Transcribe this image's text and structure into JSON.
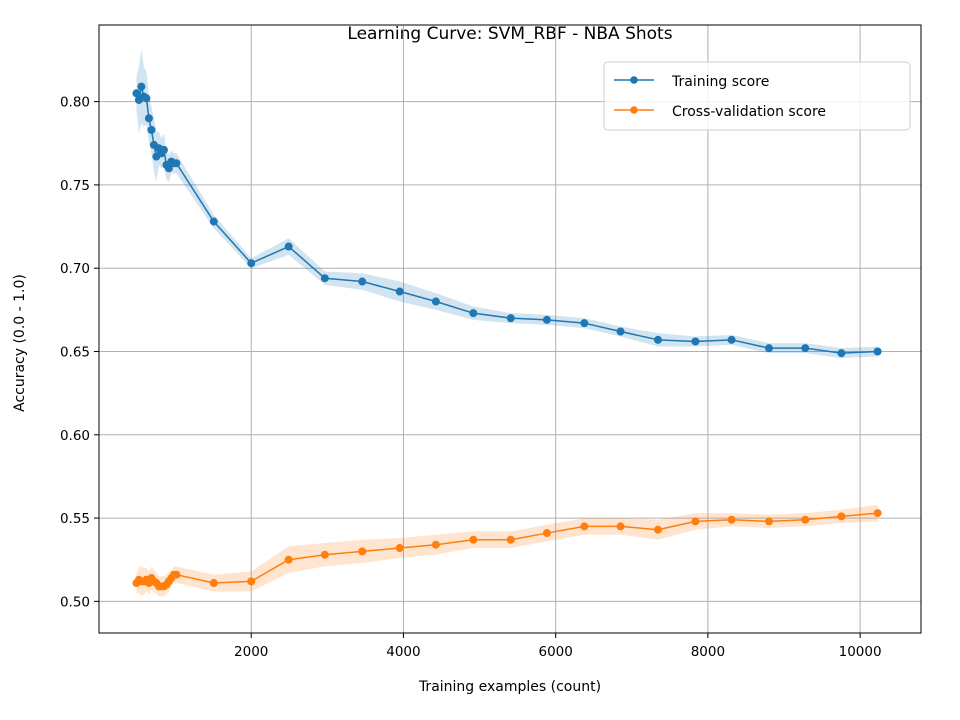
{
  "chart_data": {
    "type": "line",
    "title": "Learning Curve: SVM_RBF - NBA Shots",
    "xlabel": "Training examples (count)",
    "ylabel": "Accuracy (0.0 - 1.0)",
    "xlim": [
      0,
      10800
    ],
    "ylim": [
      0.481,
      0.846
    ],
    "xticks": [
      2000,
      4000,
      6000,
      8000,
      10000
    ],
    "yticks": [
      0.5,
      0.55,
      0.6,
      0.65,
      0.7,
      0.75,
      0.8
    ],
    "xtick_labels": [
      "2000",
      "4000",
      "6000",
      "8000",
      "10000"
    ],
    "ytick_labels": [
      "0.50",
      "0.55",
      "0.60",
      "0.65",
      "0.70",
      "0.75",
      "0.80"
    ],
    "grid": true,
    "legend_position": "top-right",
    "x": [
      492,
      524,
      557,
      590,
      623,
      656,
      689,
      722,
      754,
      787,
      820,
      853,
      886,
      918,
      951,
      984,
      1017,
      1508,
      2000,
      2492,
      2967,
      3459,
      3951,
      4426,
      4918,
      5410,
      5885,
      6377,
      6852,
      7344,
      7836,
      8311,
      8803,
      9279,
      9754,
      10230
    ],
    "series": [
      {
        "name": "Training score",
        "color": "#1f77b4",
        "values": [
          0.805,
          0.801,
          0.809,
          0.803,
          0.802,
          0.79,
          0.783,
          0.774,
          0.767,
          0.772,
          0.769,
          0.771,
          0.762,
          0.76,
          0.764,
          0.763,
          0.763,
          0.728,
          0.703,
          0.713,
          0.694,
          0.692,
          0.686,
          0.68,
          0.673,
          0.67,
          0.669,
          0.667,
          0.662,
          0.657,
          0.656,
          0.657,
          0.652,
          0.652,
          0.649,
          0.65
        ],
        "std": [
          0.01,
          0.02,
          0.022,
          0.018,
          0.016,
          0.015,
          0.014,
          0.016,
          0.015,
          0.01,
          0.009,
          0.01,
          0.009,
          0.008,
          0.007,
          0.006,
          0.006,
          0.004,
          0.003,
          0.005,
          0.004,
          0.005,
          0.006,
          0.005,
          0.004,
          0.003,
          0.003,
          0.003,
          0.003,
          0.004,
          0.003,
          0.003,
          0.003,
          0.003,
          0.003,
          0.003
        ]
      },
      {
        "name": "Cross-validation score",
        "color": "#ff7f0e",
        "values": [
          0.511,
          0.513,
          0.512,
          0.512,
          0.513,
          0.511,
          0.514,
          0.512,
          0.511,
          0.509,
          0.509,
          0.509,
          0.51,
          0.512,
          0.514,
          0.516,
          0.516,
          0.511,
          0.512,
          0.525,
          0.528,
          0.53,
          0.532,
          0.534,
          0.537,
          0.537,
          0.541,
          0.545,
          0.545,
          0.543,
          0.548,
          0.549,
          0.548,
          0.549,
          0.551,
          0.553
        ],
        "std": [
          0.006,
          0.008,
          0.009,
          0.008,
          0.007,
          0.007,
          0.007,
          0.007,
          0.006,
          0.006,
          0.006,
          0.006,
          0.006,
          0.006,
          0.005,
          0.005,
          0.005,
          0.005,
          0.006,
          0.008,
          0.007,
          0.007,
          0.006,
          0.006,
          0.005,
          0.005,
          0.005,
          0.005,
          0.005,
          0.006,
          0.005,
          0.004,
          0.004,
          0.004,
          0.004,
          0.005
        ]
      }
    ]
  }
}
